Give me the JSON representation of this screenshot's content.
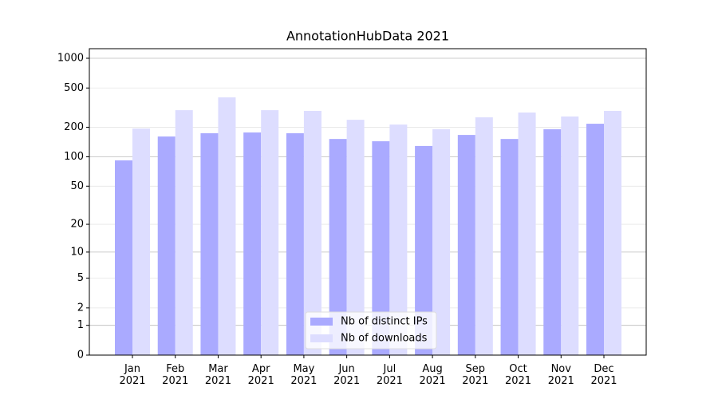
{
  "chart_data": {
    "type": "bar",
    "title": "AnnotationHubData 2021",
    "categories": [
      "Jan\n2021",
      "Feb\n2021",
      "Mar\n2021",
      "Apr\n2021",
      "May\n2021",
      "Jun\n2021",
      "Jul\n2021",
      "Aug\n2021",
      "Sep\n2021",
      "Oct\n2021",
      "Nov\n2021",
      "Dec\n2021"
    ],
    "series": [
      {
        "name": "Nb of distinct IPs",
        "color": "#aaaaff",
        "values": [
          92,
          161,
          174,
          177,
          174,
          152,
          144,
          129,
          167,
          152,
          191,
          217
        ]
      },
      {
        "name": "Nb of downloads",
        "color": "#ddddff",
        "values": [
          194,
          298,
          402,
          298,
          293,
          238,
          213,
          191,
          252,
          282,
          257,
          293
        ]
      }
    ],
    "yscale": "log1p",
    "ylim": [
      0,
      1250
    ],
    "yticks": [
      0,
      1,
      2,
      5,
      10,
      20,
      50,
      100,
      200,
      500,
      1000
    ],
    "grid": true,
    "legend": "lower center"
  }
}
